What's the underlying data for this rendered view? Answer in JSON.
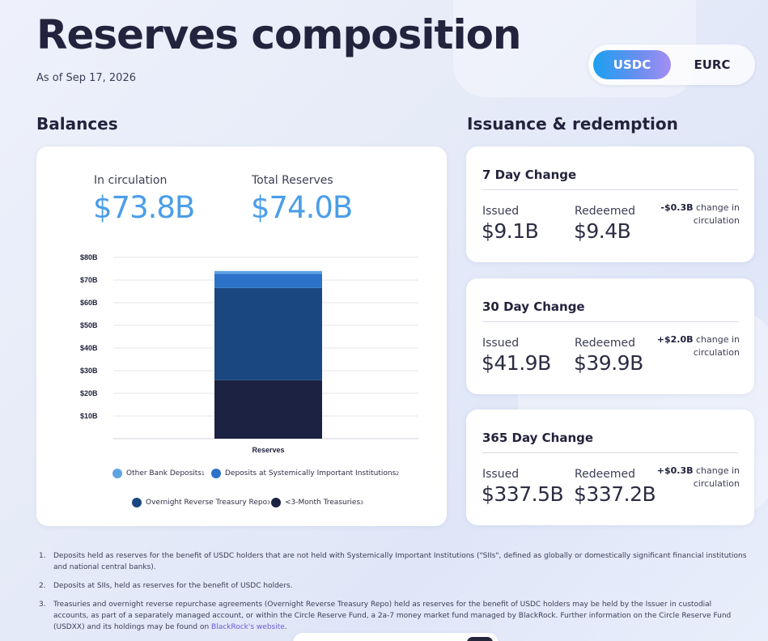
{
  "page": {
    "title": "Reserves composition",
    "as_of": "As of Sep 17, 2026"
  },
  "currency_toggle": {
    "options": [
      "USDC",
      "EURC"
    ],
    "selected": "USDC"
  },
  "balances": {
    "section_title": "Balances",
    "in_circulation_label": "In circulation",
    "in_circulation_value": "$73.8B",
    "total_reserves_label": "Total Reserves",
    "total_reserves_value": "$74.0B"
  },
  "chart_data": {
    "type": "bar",
    "stacked": true,
    "categories": [
      "Reserves"
    ],
    "y_ticks": [
      "$10B",
      "$20B",
      "$30B",
      "$40B",
      "$50B",
      "$60B",
      "$70B",
      "$80B"
    ],
    "ylim": [
      0,
      80
    ],
    "grid": true,
    "legend_position": "bottom",
    "series": [
      {
        "name": "<3-Month Treasuries",
        "note": "3",
        "values": [
          25.8
        ],
        "color": "#1b2242"
      },
      {
        "name": "Overnight Reverse Treasury Repo",
        "note": "3",
        "values": [
          40.7
        ],
        "color": "#1a4780"
      },
      {
        "name": "Deposits at Systemically Important Institutions",
        "note": "2",
        "values": [
          6.3
        ],
        "color": "#2b72c8"
      },
      {
        "name": "Other Bank Deposits",
        "note": "1",
        "values": [
          1.2
        ],
        "color": "#5ea3e4"
      }
    ]
  },
  "issuance": {
    "section_title": "Issuance & redemption",
    "issued_label": "Issued",
    "redeemed_label": "Redeemed",
    "change_suffix": "change in circulation",
    "cards": [
      {
        "title": "7 Day Change",
        "issued": "$9.1B",
        "redeemed": "$9.4B",
        "change": "-$0.3B"
      },
      {
        "title": "30 Day Change",
        "issued": "$41.9B",
        "redeemed": "$39.9B",
        "change": "+$2.0B"
      },
      {
        "title": "365 Day Change",
        "issued": "$337.5B",
        "redeemed": "$337.2B",
        "change": "+$0.3B"
      }
    ]
  },
  "footnotes": [
    {
      "num": "1.",
      "text": "Deposits held as reserves for the benefit of USDC holders that are not held with Systemically Important Institutions (\"SIIs\", defined as globally or domestically significant financial institutions and national central banks)."
    },
    {
      "num": "2.",
      "text": "Deposits at SIIs, held as reserves for the benefit of USDC holders."
    },
    {
      "num": "3.",
      "text": "Treasuries and overnight reverse repurchase agreements (Overnight Reverse Treasury Repo) held as reserves for the benefit of USDC holders may be held by the Issuer in custodial accounts, as part of a separately managed account, or within the Circle Reserve Fund, a 2a-7 money market fund managed by BlackRock. Further information on the Circle Reserve Fund (USDXX) and its holdings may be found on ",
      "link": "BlackRock's website",
      "tail": "."
    }
  ]
}
